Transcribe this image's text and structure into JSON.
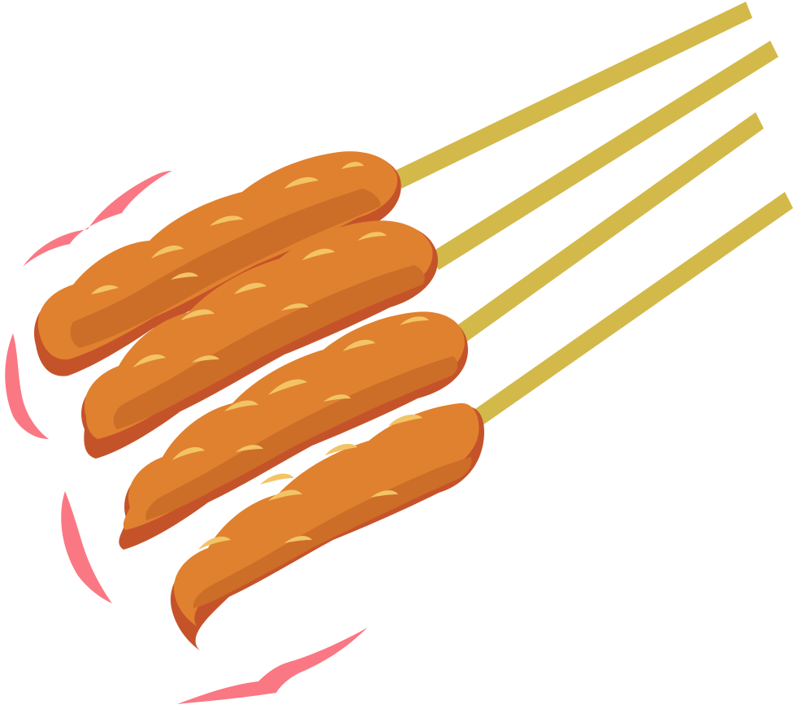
{
  "illustration": {
    "subject": "satay-skewers",
    "skewer_count": 4,
    "palette": {
      "stick": "#d3b94a",
      "meat_shadow": "#c5532a",
      "meat_main": "#e0812f",
      "meat_mid": "#cc6d28",
      "highlight": "#f2c466",
      "speed_lines": "#fa7883",
      "background": "#ffffff"
    }
  }
}
